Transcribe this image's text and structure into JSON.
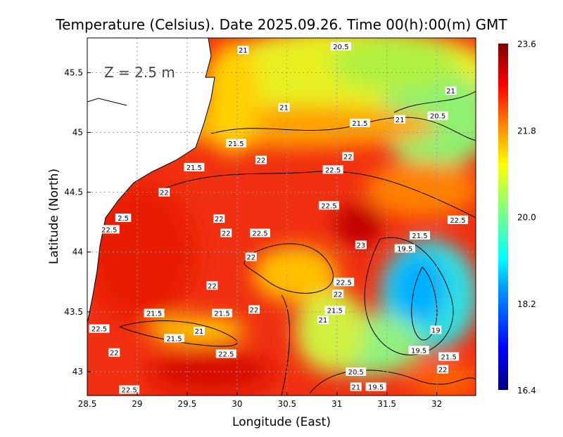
{
  "chart_data": {
    "type": "heatmap",
    "title": "Temperature (Celsius). Date 2025.09.26. Time 00(h):00(m) GMT",
    "xlabel": "Longitude (East)",
    "ylabel": "Latitude (North)",
    "annotation": "Z = 2.5 m",
    "xlim": [
      28.5,
      32.39
    ],
    "ylim": [
      42.8,
      45.79
    ],
    "xticks": [
      "28.5",
      "29",
      "29.5",
      "30",
      "30.5",
      "31",
      "31.5",
      "32"
    ],
    "xtick_values": [
      28.5,
      29,
      29.5,
      30,
      30.5,
      31,
      31.5,
      32
    ],
    "yticks": [
      "43",
      "43.5",
      "44",
      "44.5",
      "45",
      "45.5"
    ],
    "ytick_values": [
      43,
      43.5,
      44,
      44.5,
      45,
      45.5
    ],
    "grid": true,
    "colorbar": {
      "range": [
        16.4,
        23.6
      ],
      "labels": [
        "23.6",
        "21.8",
        "20.0",
        "18.2",
        "16.4"
      ],
      "colors": [
        "#000080",
        "#0000ff",
        "#00a0ff",
        "#00ffff",
        "#80ff80",
        "#ffff00",
        "#ff8000",
        "#ff0000",
        "#800000"
      ]
    },
    "contour_labels": [
      {
        "t": "21",
        "lon": 30.06,
        "lat": 45.69
      },
      {
        "t": "20.5",
        "lon": 31.04,
        "lat": 45.72
      },
      {
        "t": "21",
        "lon": 32.14,
        "lat": 45.35
      },
      {
        "t": "20.5",
        "lon": 32.01,
        "lat": 45.14
      },
      {
        "t": "21",
        "lon": 30.47,
        "lat": 45.21
      },
      {
        "t": "21",
        "lon": 31.63,
        "lat": 45.11
      },
      {
        "t": "21.5",
        "lon": 31.23,
        "lat": 45.08
      },
      {
        "t": "21.5",
        "lon": 29.99,
        "lat": 44.91
      },
      {
        "t": "22",
        "lon": 30.24,
        "lat": 44.77
      },
      {
        "t": "22",
        "lon": 31.11,
        "lat": 44.8
      },
      {
        "t": "22.5",
        "lon": 30.96,
        "lat": 44.69
      },
      {
        "t": "21.5",
        "lon": 29.57,
        "lat": 44.71
      },
      {
        "t": "22",
        "lon": 29.27,
        "lat": 44.5
      },
      {
        "t": "22.5",
        "lon": 30.92,
        "lat": 44.39
      },
      {
        "t": "22.5",
        "lon": 32.21,
        "lat": 44.27
      },
      {
        "t": "22",
        "lon": 29.82,
        "lat": 44.28
      },
      {
        "t": "22.5",
        "lon": 28.72,
        "lat": 44.19
      },
      {
        "t": "2.5",
        "lon": 28.86,
        "lat": 44.21
      },
      {
        "t": "22",
        "lon": 29.89,
        "lat": 44.16
      },
      {
        "t": "22.5",
        "lon": 30.23,
        "lat": 44.16
      },
      {
        "t": "23",
        "lon": 31.24,
        "lat": 44.06
      },
      {
        "t": "21.5",
        "lon": 31.83,
        "lat": 44.14
      },
      {
        "t": "19.5",
        "lon": 31.68,
        "lat": 44.03
      },
      {
        "t": "22",
        "lon": 30.14,
        "lat": 43.96
      },
      {
        "t": "22",
        "lon": 29.75,
        "lat": 43.72
      },
      {
        "t": "22.5",
        "lon": 31.07,
        "lat": 43.75
      },
      {
        "t": "22",
        "lon": 31.01,
        "lat": 43.65
      },
      {
        "t": "21.5",
        "lon": 30.98,
        "lat": 43.59
      },
      {
        "t": "21",
        "lon": 30.86,
        "lat": 43.51
      },
      {
        "t": "22",
        "lon": 30.17,
        "lat": 43.52
      },
      {
        "t": "21.5",
        "lon": 29.85,
        "lat": 43.49
      },
      {
        "t": "21.5",
        "lon": 29.17,
        "lat": 43.49
      },
      {
        "t": "22.5",
        "lon": 28.62,
        "lat": 43.36
      },
      {
        "t": "21",
        "lon": 29.62,
        "lat": 43.34
      },
      {
        "t": "19",
        "lon": 31.99,
        "lat": 43.35
      },
      {
        "t": "21.5",
        "lon": 29.37,
        "lat": 43.28
      },
      {
        "t": "22",
        "lon": 28.77,
        "lat": 43.16
      },
      {
        "t": "22.5",
        "lon": 29.89,
        "lat": 43.15
      },
      {
        "t": "19.5",
        "lon": 31.82,
        "lat": 43.18
      },
      {
        "t": "20.5",
        "lon": 31.19,
        "lat": 43.0
      },
      {
        "t": "21",
        "lon": 31.19,
        "lat": 42.95
      },
      {
        "t": "19.5",
        "lon": 31.39,
        "lat": 42.95
      },
      {
        "t": "22",
        "lon": 32.06,
        "lat": 43.02
      },
      {
        "t": "21.5",
        "lon": 32.12,
        "lat": 43.05
      },
      {
        "t": "22.5",
        "lon": 28.92,
        "lat": 42.85
      }
    ]
  }
}
